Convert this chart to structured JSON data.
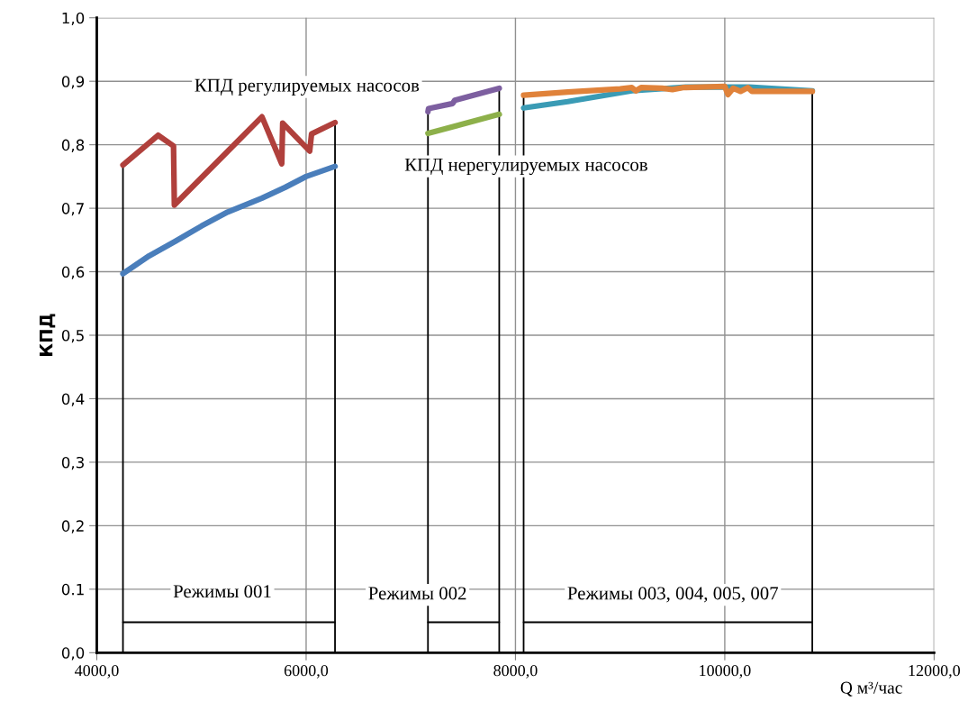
{
  "chart_data": {
    "type": "line",
    "xlabel": "Q м³/час",
    "ylabel": "КПД",
    "xlim": [
      4000,
      12000
    ],
    "xticks": [
      {
        "value": 4000,
        "label": "4000,0"
      },
      {
        "value": 6000,
        "label": "6000,0"
      },
      {
        "value": 8000,
        "label": "8000,0"
      },
      {
        "value": 10000,
        "label": "10000,0"
      },
      {
        "value": 12000,
        "label": "12000,0"
      }
    ],
    "ylim": [
      0,
      1
    ],
    "yticks": [
      {
        "value": 0,
        "label": "0,0"
      },
      {
        "value": 0.1,
        "label": "0.1"
      },
      {
        "value": 0.2,
        "label": "0,2"
      },
      {
        "value": 0.3,
        "label": "0,3"
      },
      {
        "value": 0.4,
        "label": "0,4"
      },
      {
        "value": 0.5,
        "label": "0,5"
      },
      {
        "value": 0.6,
        "label": "0,6"
      },
      {
        "value": 0.7,
        "label": "0,7"
      },
      {
        "value": 0.8,
        "label": "0,8"
      },
      {
        "value": 0.9,
        "label": "0,9"
      },
      {
        "value": 1.0,
        "label": "1,0"
      }
    ],
    "grid": true,
    "marker": "none",
    "line_style": "solid",
    "series": [
      {
        "color": "#4a7ebb",
        "x": [
          4250,
          4500,
          4750,
          5000,
          5250,
          5578,
          5800,
          6000,
          6276
        ],
        "values": [
          0.597,
          0.625,
          0.648,
          0.672,
          0.694,
          0.716,
          0.733,
          0.75,
          0.766
        ]
      },
      {
        "color": "#b0403c",
        "x": [
          4250,
          4586,
          4733,
          4741,
          5578,
          5767,
          5776,
          6034,
          6052,
          6276
        ],
        "values": [
          0.768,
          0.815,
          0.798,
          0.705,
          0.844,
          0.77,
          0.834,
          0.79,
          0.817,
          0.835
        ]
      },
      {
        "color": "#8db04a",
        "x": [
          7164,
          7845
        ],
        "values": [
          0.818,
          0.848
        ]
      },
      {
        "color": "#7d5fa0",
        "x": [
          7164,
          7170,
          7400,
          7420,
          7845
        ],
        "values": [
          0.852,
          0.857,
          0.865,
          0.87,
          0.889
        ]
      },
      {
        "color": "#3a9bb5",
        "x": [
          8078,
          8500,
          9112,
          9629,
          10233,
          10836
        ],
        "values": [
          0.858,
          0.868,
          0.885,
          0.891,
          0.891,
          0.885
        ]
      },
      {
        "color": "#e0823a",
        "x": [
          8078,
          8500,
          9000,
          9112,
          9150,
          9200,
          9400,
          9500,
          9600,
          10000,
          10030,
          10080,
          10150,
          10220,
          10260,
          10836
        ],
        "values": [
          0.878,
          0.883,
          0.888,
          0.89,
          0.885,
          0.89,
          0.889,
          0.887,
          0.89,
          0.892,
          0.879,
          0.889,
          0.884,
          0.89,
          0.884,
          0.884
        ]
      },
      {
        "color": "#000000",
        "x": [
          4250,
          4250
        ],
        "values": [
          0,
          0.768
        ]
      },
      {
        "color": "#000000",
        "x": [
          6276,
          6276
        ],
        "values": [
          0,
          0.835
        ]
      },
      {
        "color": "#000000",
        "x": [
          7164,
          7164
        ],
        "values": [
          0,
          0.852
        ]
      },
      {
        "color": "#000000",
        "x": [
          7845,
          7845
        ],
        "values": [
          0,
          0.889
        ]
      },
      {
        "color": "#000000",
        "x": [
          8078,
          8078
        ],
        "values": [
          0,
          0.878
        ]
      },
      {
        "color": "#000000",
        "x": [
          10836,
          10836
        ],
        "values": [
          0,
          0.884
        ]
      },
      {
        "color": "#000000",
        "x": [
          4250,
          6276
        ],
        "values": [
          0.048,
          0.048
        ]
      },
      {
        "color": "#000000",
        "x": [
          7164,
          7845
        ],
        "values": [
          0.048,
          0.048
        ]
      },
      {
        "color": "#000000",
        "x": [
          8078,
          10836
        ],
        "values": [
          0.048,
          0.048
        ]
      }
    ],
    "annotations": [
      "КПД регулируемых насосов",
      {
        "text": "КПД нерегулируемых насосов",
        "x": 8103,
        "y": 0.766
      },
      "Режимы 001",
      "Режимы 002",
      "Режимы 003, 004, 005, 007"
    ]
  }
}
